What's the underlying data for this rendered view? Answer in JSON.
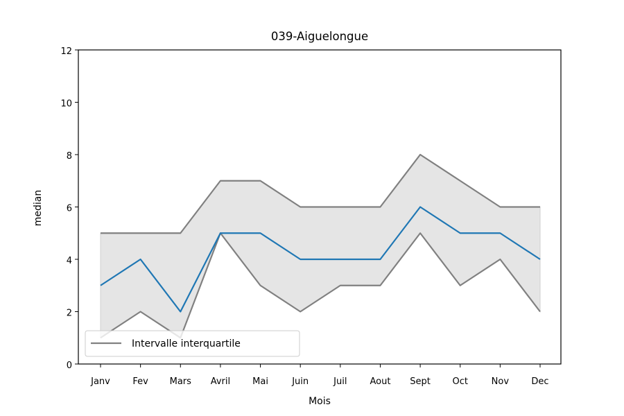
{
  "chart_data": {
    "type": "line",
    "title": "039-Aiguelongue",
    "xlabel": "Mois",
    "ylabel": "median",
    "categories": [
      "Janv",
      "Fev",
      "Mars",
      "Avril",
      "Mai",
      "Juin",
      "Juil",
      "Aout",
      "Sept",
      "Oct",
      "Nov",
      "Dec"
    ],
    "ylim": [
      0,
      12
    ],
    "yticks": [
      0,
      2,
      4,
      6,
      8,
      10,
      12
    ],
    "series": [
      {
        "name": "",
        "role": "median",
        "values": [
          3,
          4,
          2,
          5,
          5,
          4,
          4,
          4,
          6,
          5,
          5,
          4
        ],
        "color": "#1f77b4"
      },
      {
        "name": "Intervalle interquartile",
        "role": "q3",
        "values": [
          5,
          5,
          5,
          7,
          7,
          6,
          6,
          6,
          8,
          7,
          6,
          6
        ],
        "color": "#808080"
      },
      {
        "name": "",
        "role": "q1",
        "values": [
          1,
          2,
          1,
          5,
          3,
          2,
          3,
          3,
          5,
          3,
          4,
          2
        ],
        "color": "#808080"
      }
    ],
    "fill_color": "#e5e5e5",
    "legend": {
      "position": "bottom-left",
      "label": "Intervalle interquartile"
    },
    "grid": false
  }
}
